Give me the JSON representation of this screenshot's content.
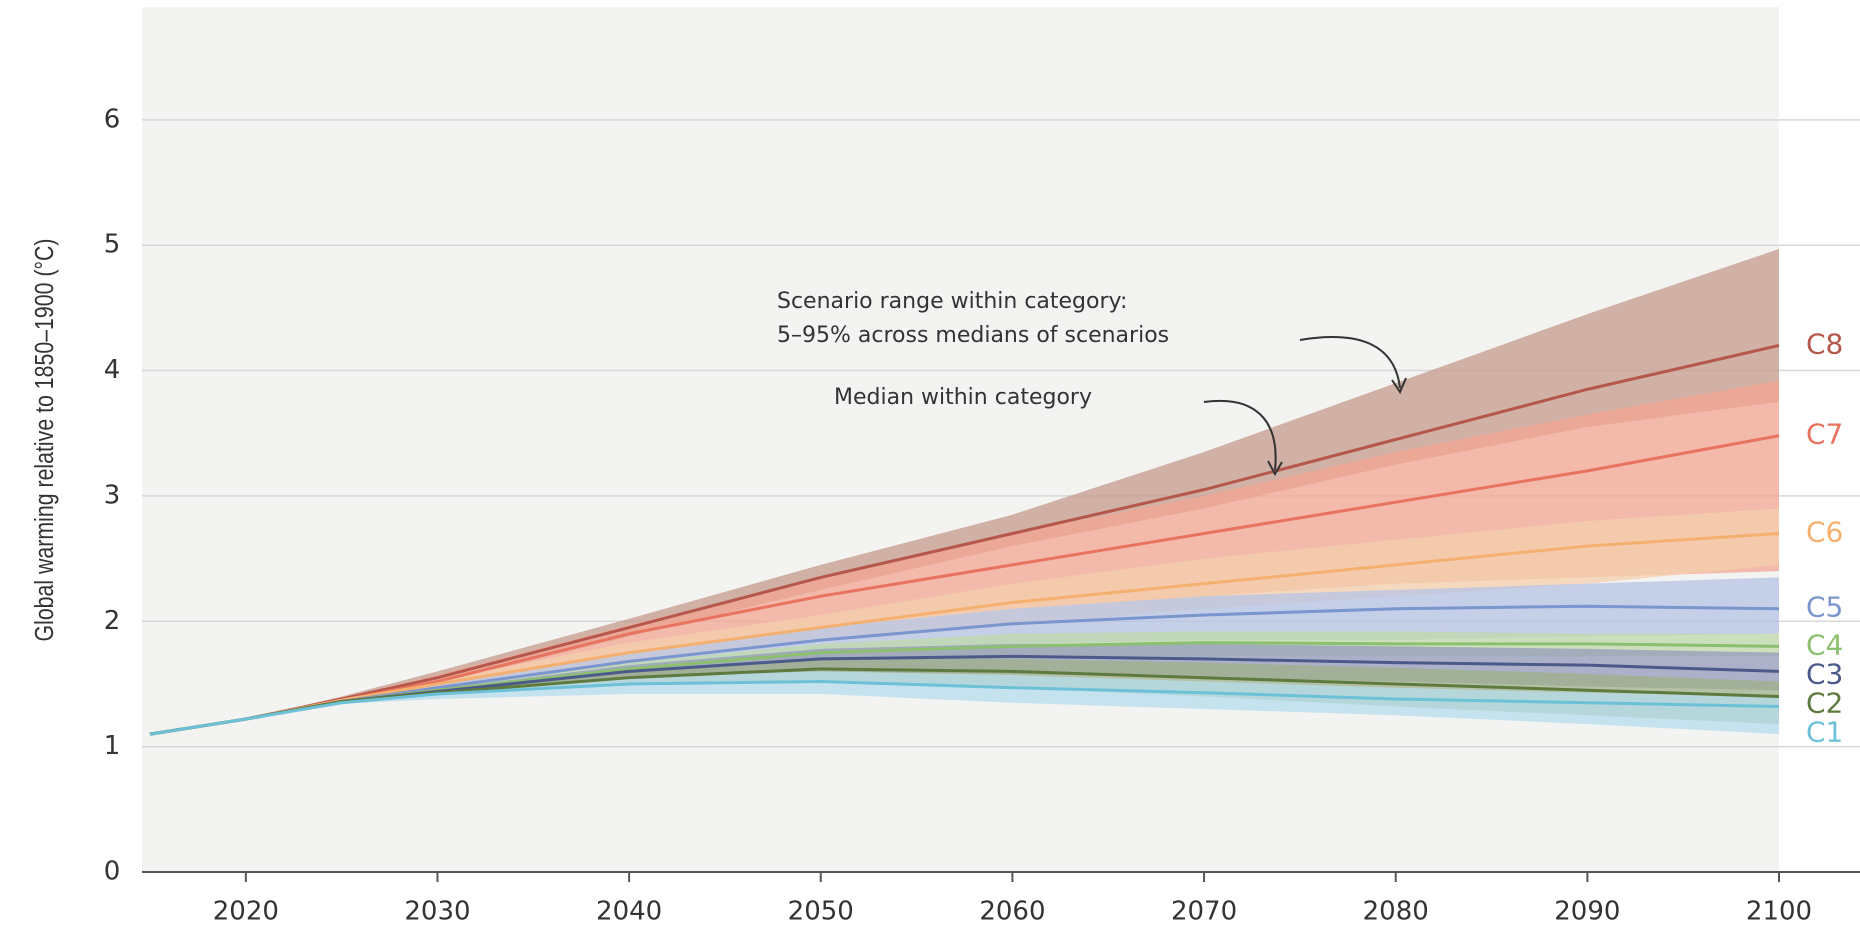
{
  "chart_data": {
    "type": "line",
    "y_label": "Global warming relative to 1850–1900 (°C)",
    "annotations": [
      {
        "lines": [
          "Scenario range within category:",
          "5–95% across medians of scenarios"
        ]
      },
      {
        "lines": [
          "Median within category"
        ]
      }
    ],
    "x": [
      2015,
      2020,
      2025,
      2030,
      2040,
      2050,
      2060,
      2070,
      2080,
      2090,
      2100
    ],
    "xlim": [
      2015,
      2100
    ],
    "xticks": [
      2020,
      2030,
      2040,
      2050,
      2060,
      2070,
      2080,
      2090,
      2100
    ],
    "ylim": [
      0,
      6.9
    ],
    "yticks": [
      0,
      1,
      2,
      3,
      4,
      5,
      6
    ],
    "grid": true,
    "series": [
      {
        "name": "C8",
        "color": "#b5574a",
        "band_color": "#c59a8b",
        "values": [
          1.1,
          1.22,
          1.38,
          1.55,
          1.95,
          2.35,
          2.7,
          3.05,
          3.45,
          3.85,
          4.2
        ],
        "low": [
          1.1,
          1.22,
          1.37,
          1.5,
          1.88,
          2.25,
          2.6,
          2.9,
          3.25,
          3.55,
          3.75
        ],
        "high": [
          1.1,
          1.22,
          1.4,
          1.6,
          2.02,
          2.45,
          2.85,
          3.35,
          3.9,
          4.45,
          4.97
        ]
      },
      {
        "name": "C7",
        "color": "#e8735e",
        "band_color": "#f3a593",
        "values": [
          1.1,
          1.22,
          1.37,
          1.52,
          1.9,
          2.2,
          2.45,
          2.7,
          2.95,
          3.2,
          3.48
        ],
        "low": [
          1.1,
          1.22,
          1.36,
          1.48,
          1.75,
          1.95,
          2.1,
          2.2,
          2.3,
          2.35,
          2.4
        ],
        "high": [
          1.1,
          1.22,
          1.39,
          1.57,
          1.97,
          2.35,
          2.7,
          3.0,
          3.35,
          3.65,
          3.92
        ]
      },
      {
        "name": "C6",
        "color": "#f5b070",
        "band_color": "#f4d0ae",
        "values": [
          1.1,
          1.22,
          1.37,
          1.5,
          1.75,
          1.95,
          2.15,
          2.3,
          2.45,
          2.6,
          2.7
        ],
        "low": [
          1.1,
          1.22,
          1.36,
          1.47,
          1.68,
          1.85,
          1.97,
          2.1,
          2.2,
          2.3,
          2.45
        ],
        "high": [
          1.1,
          1.22,
          1.38,
          1.53,
          1.83,
          2.05,
          2.3,
          2.5,
          2.65,
          2.8,
          2.9
        ]
      },
      {
        "name": "C5",
        "color": "#7b95cf",
        "band_color": "#b7c3e4",
        "values": [
          1.1,
          1.22,
          1.36,
          1.47,
          1.68,
          1.85,
          1.98,
          2.05,
          2.1,
          2.12,
          2.1
        ],
        "low": [
          1.1,
          1.22,
          1.35,
          1.45,
          1.6,
          1.75,
          1.82,
          1.85,
          1.85,
          1.88,
          1.9
        ],
        "high": [
          1.1,
          1.22,
          1.37,
          1.5,
          1.75,
          1.95,
          2.1,
          2.2,
          2.25,
          2.3,
          2.35
        ]
      },
      {
        "name": "C4",
        "color": "#8cbf6e",
        "band_color": "#bfd9ab",
        "values": [
          1.1,
          1.22,
          1.36,
          1.45,
          1.62,
          1.75,
          1.8,
          1.83,
          1.82,
          1.82,
          1.8
        ],
        "low": [
          1.1,
          1.22,
          1.35,
          1.43,
          1.57,
          1.67,
          1.7,
          1.72,
          1.72,
          1.72,
          1.72
        ],
        "high": [
          1.1,
          1.22,
          1.37,
          1.48,
          1.67,
          1.82,
          1.9,
          1.92,
          1.92,
          1.9,
          1.9
        ]
      },
      {
        "name": "C3",
        "color": "#4c5a8a",
        "band_color": "#949bbb",
        "values": [
          1.1,
          1.22,
          1.36,
          1.44,
          1.6,
          1.7,
          1.72,
          1.7,
          1.67,
          1.65,
          1.6
        ],
        "low": [
          1.1,
          1.22,
          1.35,
          1.42,
          1.55,
          1.6,
          1.58,
          1.55,
          1.52,
          1.48,
          1.45
        ],
        "high": [
          1.1,
          1.22,
          1.37,
          1.46,
          1.65,
          1.78,
          1.82,
          1.82,
          1.8,
          1.78,
          1.75
        ]
      },
      {
        "name": "C2",
        "color": "#5e7a3e",
        "band_color": "#9fb08a",
        "values": [
          1.1,
          1.22,
          1.36,
          1.43,
          1.55,
          1.62,
          1.6,
          1.55,
          1.5,
          1.45,
          1.4
        ],
        "low": [
          1.1,
          1.22,
          1.35,
          1.41,
          1.5,
          1.52,
          1.47,
          1.4,
          1.32,
          1.25,
          1.18
        ],
        "high": [
          1.1,
          1.22,
          1.37,
          1.45,
          1.6,
          1.7,
          1.7,
          1.67,
          1.63,
          1.58,
          1.52
        ]
      },
      {
        "name": "C1",
        "color": "#6cc1d9",
        "band_color": "#b6dded",
        "values": [
          1.1,
          1.22,
          1.35,
          1.42,
          1.5,
          1.52,
          1.47,
          1.43,
          1.38,
          1.35,
          1.32
        ],
        "low": [
          1.1,
          1.22,
          1.34,
          1.38,
          1.42,
          1.42,
          1.35,
          1.3,
          1.25,
          1.18,
          1.1
        ],
        "high": [
          1.1,
          1.22,
          1.36,
          1.44,
          1.56,
          1.6,
          1.57,
          1.52,
          1.47,
          1.43,
          1.4
        ]
      }
    ]
  }
}
